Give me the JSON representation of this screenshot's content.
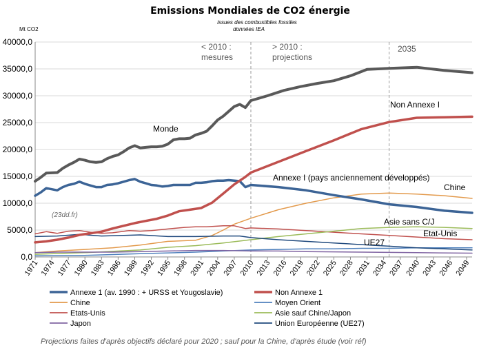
{
  "chart_data": {
    "type": "line",
    "title": "Emissions Mondiales de CO2 énergie",
    "subtitle_line1": "issues des combustibles fossiles",
    "subtitle_line2": "données IEA",
    "ylabel": "Mt CO2",
    "ylim": [
      0,
      40000
    ],
    "yticks": [
      "0,0",
      "5000,0",
      "10000,0",
      "15000,0",
      "20000,0",
      "25000,0",
      "30000,0",
      "35000,0",
      "40000,0"
    ],
    "ytick_values": [
      0,
      5000,
      10000,
      15000,
      20000,
      25000,
      30000,
      35000,
      40000
    ],
    "xlim": [
      1971,
      2050
    ],
    "xtick_values": [
      1971,
      1974,
      1977,
      1980,
      1983,
      1986,
      1989,
      1992,
      1995,
      1998,
      2001,
      2004,
      2007,
      2010,
      2013,
      2016,
      2019,
      2022,
      2025,
      2028,
      2031,
      2034,
      2037,
      2040,
      2043,
      2046,
      2049
    ],
    "grid": true,
    "vlines": [
      2010,
      2035
    ],
    "annotations": {
      "measures_1": "< 2010 :",
      "measures_2": "mesures",
      "proj_1": "> 2010 :",
      "proj_2": "projections",
      "year_2035": "2035",
      "credit": "(23dd.fr)",
      "monde": "Monde",
      "non_annexe": "Non Annexe I",
      "annexe": "Annexe I (pays anciennement développés)",
      "chine": "Chine",
      "asie_sans": "Asie sans C/J",
      "etat_unis": "Etat-Unis",
      "ue27": "UE27"
    },
    "series": [
      {
        "name": "Monde",
        "color": "#595959",
        "width": 4,
        "points": [
          [
            1971,
            14100
          ],
          [
            1972,
            14800
          ],
          [
            1973,
            15600
          ],
          [
            1975,
            15700
          ],
          [
            1976,
            16500
          ],
          [
            1977,
            17100
          ],
          [
            1978,
            17600
          ],
          [
            1979,
            18200
          ],
          [
            1980,
            18000
          ],
          [
            1981,
            17700
          ],
          [
            1982,
            17600
          ],
          [
            1983,
            17700
          ],
          [
            1984,
            18300
          ],
          [
            1985,
            18700
          ],
          [
            1986,
            19000
          ],
          [
            1987,
            19600
          ],
          [
            1988,
            20300
          ],
          [
            1989,
            20700
          ],
          [
            1990,
            20300
          ],
          [
            1991,
            20400
          ],
          [
            1992,
            20500
          ],
          [
            1993,
            20500
          ],
          [
            1994,
            20600
          ],
          [
            1995,
            21000
          ],
          [
            1996,
            21800
          ],
          [
            1997,
            22000
          ],
          [
            1998,
            22000
          ],
          [
            1999,
            22100
          ],
          [
            2000,
            22700
          ],
          [
            2001,
            23000
          ],
          [
            2002,
            23400
          ],
          [
            2003,
            24400
          ],
          [
            2004,
            25500
          ],
          [
            2005,
            26200
          ],
          [
            2006,
            27100
          ],
          [
            2007,
            28000
          ],
          [
            2008,
            28400
          ],
          [
            2009,
            27800
          ],
          [
            2010,
            29100
          ],
          [
            2013,
            30000
          ],
          [
            2016,
            31000
          ],
          [
            2019,
            31700
          ],
          [
            2022,
            32300
          ],
          [
            2025,
            32800
          ],
          [
            2028,
            33700
          ],
          [
            2031,
            34900
          ],
          [
            2035,
            35100
          ],
          [
            2040,
            35300
          ],
          [
            2045,
            34700
          ],
          [
            2050,
            34300
          ]
        ]
      },
      {
        "name": "Annexe 1 (av. 1990 :  + URSS et Yougoslavie)",
        "color": "#3C6496",
        "width": 3.5,
        "points": [
          [
            1971,
            11400
          ],
          [
            1972,
            12000
          ],
          [
            1973,
            12800
          ],
          [
            1974,
            12600
          ],
          [
            1975,
            12400
          ],
          [
            1976,
            13000
          ],
          [
            1977,
            13400
          ],
          [
            1978,
            13600
          ],
          [
            1979,
            14000
          ],
          [
            1980,
            13600
          ],
          [
            1981,
            13300
          ],
          [
            1982,
            13000
          ],
          [
            1983,
            13000
          ],
          [
            1984,
            13400
          ],
          [
            1985,
            13500
          ],
          [
            1986,
            13700
          ],
          [
            1987,
            14000
          ],
          [
            1988,
            14300
          ],
          [
            1989,
            14500
          ],
          [
            1990,
            14000
          ],
          [
            1991,
            13700
          ],
          [
            1992,
            13400
          ],
          [
            1993,
            13300
          ],
          [
            1994,
            13100
          ],
          [
            1995,
            13200
          ],
          [
            1996,
            13400
          ],
          [
            1997,
            13400
          ],
          [
            1998,
            13400
          ],
          [
            1999,
            13400
          ],
          [
            2000,
            13800
          ],
          [
            2001,
            13800
          ],
          [
            2002,
            13900
          ],
          [
            2003,
            14100
          ],
          [
            2004,
            14200
          ],
          [
            2005,
            14200
          ],
          [
            2006,
            14300
          ],
          [
            2007,
            14200
          ],
          [
            2008,
            14100
          ],
          [
            2009,
            13000
          ],
          [
            2010,
            13400
          ],
          [
            2015,
            13000
          ],
          [
            2020,
            12400
          ],
          [
            2025,
            11500
          ],
          [
            2030,
            10700
          ],
          [
            2035,
            9800
          ],
          [
            2040,
            9300
          ],
          [
            2045,
            8600
          ],
          [
            2050,
            8200
          ]
        ]
      },
      {
        "name": "Non Annexe 1",
        "color": "#C0504D",
        "width": 3.5,
        "points": [
          [
            1971,
            2700
          ],
          [
            1973,
            2900
          ],
          [
            1975,
            3200
          ],
          [
            1977,
            3600
          ],
          [
            1979,
            4100
          ],
          [
            1981,
            4400
          ],
          [
            1983,
            4700
          ],
          [
            1985,
            5300
          ],
          [
            1987,
            5800
          ],
          [
            1989,
            6300
          ],
          [
            1991,
            6700
          ],
          [
            1993,
            7100
          ],
          [
            1995,
            7700
          ],
          [
            1997,
            8500
          ],
          [
            1999,
            8800
          ],
          [
            2001,
            9100
          ],
          [
            2003,
            10100
          ],
          [
            2005,
            11800
          ],
          [
            2007,
            13500
          ],
          [
            2009,
            14900
          ],
          [
            2010,
            15700
          ],
          [
            2015,
            17700
          ],
          [
            2020,
            19700
          ],
          [
            2025,
            21700
          ],
          [
            2030,
            23800
          ],
          [
            2035,
            25100
          ],
          [
            2040,
            25900
          ],
          [
            2045,
            26000
          ],
          [
            2050,
            26100
          ]
        ]
      },
      {
        "name": "Chine",
        "color": "#E39A4C",
        "width": 1.5,
        "points": [
          [
            1971,
            800
          ],
          [
            1975,
            1100
          ],
          [
            1980,
            1400
          ],
          [
            1985,
            1700
          ],
          [
            1990,
            2200
          ],
          [
            1995,
            2900
          ],
          [
            2000,
            3100
          ],
          [
            2003,
            4000
          ],
          [
            2005,
            5000
          ],
          [
            2007,
            6100
          ],
          [
            2010,
            7200
          ],
          [
            2015,
            8800
          ],
          [
            2020,
            10000
          ],
          [
            2025,
            11000
          ],
          [
            2030,
            11700
          ],
          [
            2035,
            11900
          ],
          [
            2040,
            11700
          ],
          [
            2045,
            11400
          ],
          [
            2050,
            10900
          ]
        ]
      },
      {
        "name": "Moyen Orient",
        "color": "#4F81BD",
        "width": 1.5,
        "points": [
          [
            1971,
            200
          ],
          [
            1980,
            300
          ],
          [
            1990,
            600
          ],
          [
            2000,
            900
          ],
          [
            2005,
            1100
          ],
          [
            2010,
            1300
          ],
          [
            2015,
            1400
          ],
          [
            2020,
            1500
          ],
          [
            2025,
            1500
          ],
          [
            2030,
            1600
          ],
          [
            2035,
            1600
          ],
          [
            2040,
            1700
          ],
          [
            2045,
            1700
          ],
          [
            2050,
            1700
          ]
        ]
      },
      {
        "name": "Etats-Unis",
        "color": "#C0504D",
        "width": 1.5,
        "points": [
          [
            1971,
            4300
          ],
          [
            1973,
            4700
          ],
          [
            1975,
            4400
          ],
          [
            1977,
            4800
          ],
          [
            1979,
            4900
          ],
          [
            1981,
            4600
          ],
          [
            1983,
            4400
          ],
          [
            1985,
            4500
          ],
          [
            1988,
            4900
          ],
          [
            1990,
            4800
          ],
          [
            1992,
            4900
          ],
          [
            1995,
            5200
          ],
          [
            1998,
            5500
          ],
          [
            2000,
            5600
          ],
          [
            2002,
            5600
          ],
          [
            2005,
            5800
          ],
          [
            2007,
            5800
          ],
          [
            2009,
            5300
          ],
          [
            2010,
            5400
          ],
          [
            2015,
            5200
          ],
          [
            2020,
            4900
          ],
          [
            2025,
            4600
          ],
          [
            2030,
            4300
          ],
          [
            2035,
            4000
          ],
          [
            2040,
            3700
          ],
          [
            2045,
            3400
          ],
          [
            2050,
            3200
          ]
        ]
      },
      {
        "name": "Asie sauf Chine/Japon",
        "color": "#9BBB59",
        "width": 1.5,
        "points": [
          [
            1971,
            500
          ],
          [
            1980,
            800
          ],
          [
            1990,
            1300
          ],
          [
            1995,
            1800
          ],
          [
            2000,
            2100
          ],
          [
            2005,
            2600
          ],
          [
            2010,
            3200
          ],
          [
            2015,
            3800
          ],
          [
            2020,
            4300
          ],
          [
            2025,
            4800
          ],
          [
            2030,
            5300
          ],
          [
            2035,
            5500
          ],
          [
            2040,
            5600
          ],
          [
            2045,
            5500
          ],
          [
            2050,
            5300
          ]
        ]
      },
      {
        "name": "Japon",
        "color": "#8064A2",
        "width": 1.5,
        "points": [
          [
            1971,
            800
          ],
          [
            1975,
            900
          ],
          [
            1980,
            900
          ],
          [
            1985,
            900
          ],
          [
            1990,
            1000
          ],
          [
            1995,
            1100
          ],
          [
            2000,
            1200
          ],
          [
            2005,
            1200
          ],
          [
            2010,
            1100
          ],
          [
            2015,
            1100
          ],
          [
            2020,
            1000
          ],
          [
            2030,
            900
          ],
          [
            2040,
            800
          ],
          [
            2050,
            700
          ]
        ]
      },
      {
        "name": "Union Européenne (UE27)",
        "color": "#1F497D",
        "width": 1.5,
        "points": [
          [
            1971,
            3800
          ],
          [
            1975,
            3900
          ],
          [
            1979,
            4200
          ],
          [
            1983,
            3900
          ],
          [
            1987,
            4000
          ],
          [
            1990,
            4100
          ],
          [
            1995,
            3800
          ],
          [
            2000,
            3800
          ],
          [
            2005,
            3900
          ],
          [
            2008,
            3900
          ],
          [
            2010,
            3600
          ],
          [
            2015,
            3200
          ],
          [
            2020,
            2900
          ],
          [
            2025,
            2600
          ],
          [
            2030,
            2300
          ],
          [
            2035,
            2000
          ],
          [
            2040,
            1700
          ],
          [
            2045,
            1500
          ],
          [
            2050,
            1300
          ]
        ]
      }
    ],
    "legend_order": [
      1,
      2,
      3,
      4,
      5,
      6,
      7,
      8
    ],
    "footnote": "Projections  faites  d'après objectifs  déclaré  pour 2020 ; sauf pour la Chine,  d'après étude  (voir réf)"
  }
}
